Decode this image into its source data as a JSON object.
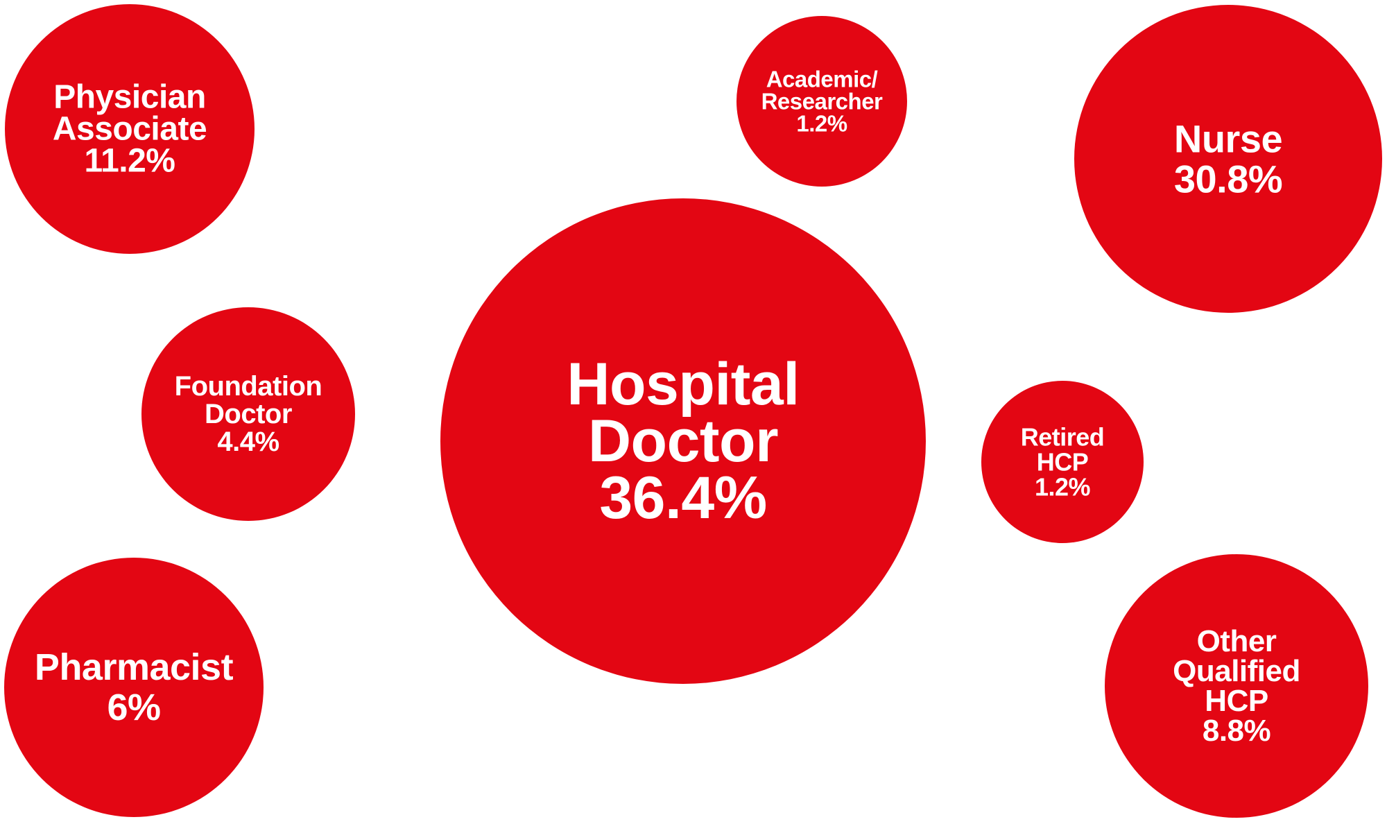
{
  "colors": {
    "bubble": "#e30613",
    "text": "#ffffff",
    "background": "#ffffff"
  },
  "chart_data": {
    "type": "bubble",
    "title": "",
    "series": [
      {
        "label_lines": [
          "Hospital",
          "Doctor"
        ],
        "value_text": "36.4%",
        "value": 36.4
      },
      {
        "label_lines": [
          "Nurse"
        ],
        "value_text": "30.8%",
        "value": 30.8
      },
      {
        "label_lines": [
          "Physician",
          "Associate"
        ],
        "value_text": "11.2%",
        "value": 11.2
      },
      {
        "label_lines": [
          "Other",
          "Qualified",
          "HCP"
        ],
        "value_text": "8.8%",
        "value": 8.8
      },
      {
        "label_lines": [
          "Pharmacist"
        ],
        "value_text": "6%",
        "value": 6
      },
      {
        "label_lines": [
          "Foundation",
          "Doctor"
        ],
        "value_text": "4.4%",
        "value": 4.4
      },
      {
        "label_lines": [
          "Academic/",
          "Researcher"
        ],
        "value_text": "1.2%",
        "value": 1.2
      },
      {
        "label_lines": [
          "Retired",
          "HCP"
        ],
        "value_text": "1.2%",
        "value": 1.2
      }
    ]
  }
}
